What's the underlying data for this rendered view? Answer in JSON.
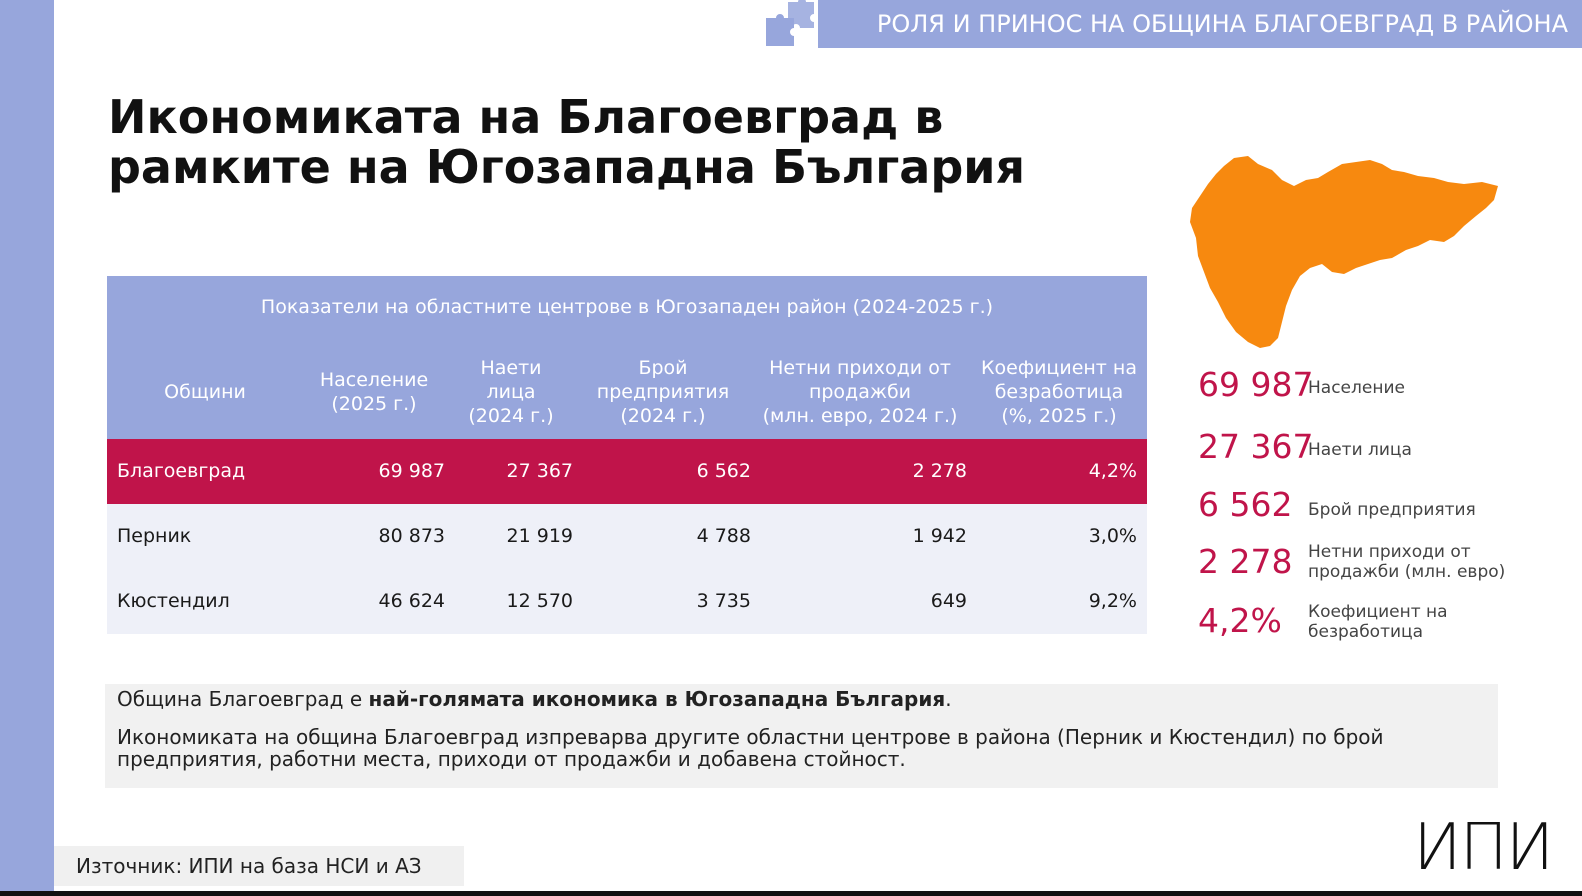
{
  "banner": {
    "text": "РОЛЯ И ПРИНОС НА ОБЩИНА БЛАГОЕВГРАД В РАЙОНА"
  },
  "title": {
    "line1": "Икономиката на Благоевград в",
    "line2": "рамките на Югозападна България"
  },
  "table": {
    "caption": "Показатели на областните центрове в Югозападен район (2024-2025 г.)",
    "headers": [
      [
        "Общини"
      ],
      [
        "Население",
        "(2025 г.)"
      ],
      [
        "Наети",
        "лица",
        "(2024 г.)"
      ],
      [
        "Брой",
        "предприятия",
        "(2024 г.)"
      ],
      [
        "Нетни приходи от",
        "продажби",
        "(млн. евро, 2024 г.)"
      ],
      [
        "Коефициент на",
        "безработица",
        "(%, 2025 г.)"
      ]
    ],
    "rows": [
      {
        "name": "Благоевград",
        "population": "69 987",
        "employed": "27 367",
        "enterprises": "6 562",
        "revenue": "2 278",
        "unemployment": "4,2%"
      },
      {
        "name": "Перник",
        "population": "80 873",
        "employed": "21 919",
        "enterprises": "4 788",
        "revenue": "1 942",
        "unemployment": "3,0%"
      },
      {
        "name": "Кюстендил",
        "population": "46 624",
        "employed": "12 570",
        "enterprises": "3 735",
        "revenue": "649",
        "unemployment": "9,2%"
      }
    ]
  },
  "kpis": [
    {
      "value": "69 987",
      "label": [
        "Население"
      ]
    },
    {
      "value": "27 367",
      "label": [
        "Наети лица"
      ]
    },
    {
      "value": "6 562",
      "label": [
        "Брой предприятия"
      ]
    },
    {
      "value": "2 278",
      "label": [
        "Нетни приходи от",
        "продажби (млн. евро)"
      ]
    },
    {
      "value": "4,2%",
      "label": [
        "Коефициент на",
        "безработица"
      ]
    }
  ],
  "summary": {
    "p1_pre": "Община Благоевград е ",
    "p1_bold": "най-голямата икономика в Югозападна България",
    "p1_post": ".",
    "p2": "Икономиката на община Благоевград изпреварва другите областни центрове в района (Перник и Кюстендил) по брой предприятия, работни места, приходи от продажби и добавена стойност."
  },
  "source": "Източник: ИПИ на база НСИ и АЗ",
  "logo": "ИПИ",
  "colors": {
    "accent": "#c0144a",
    "banner": "#97a6dc",
    "map": "#f7890f"
  },
  "icons": {
    "puzzle": "puzzle-icon",
    "map": "region-map"
  }
}
